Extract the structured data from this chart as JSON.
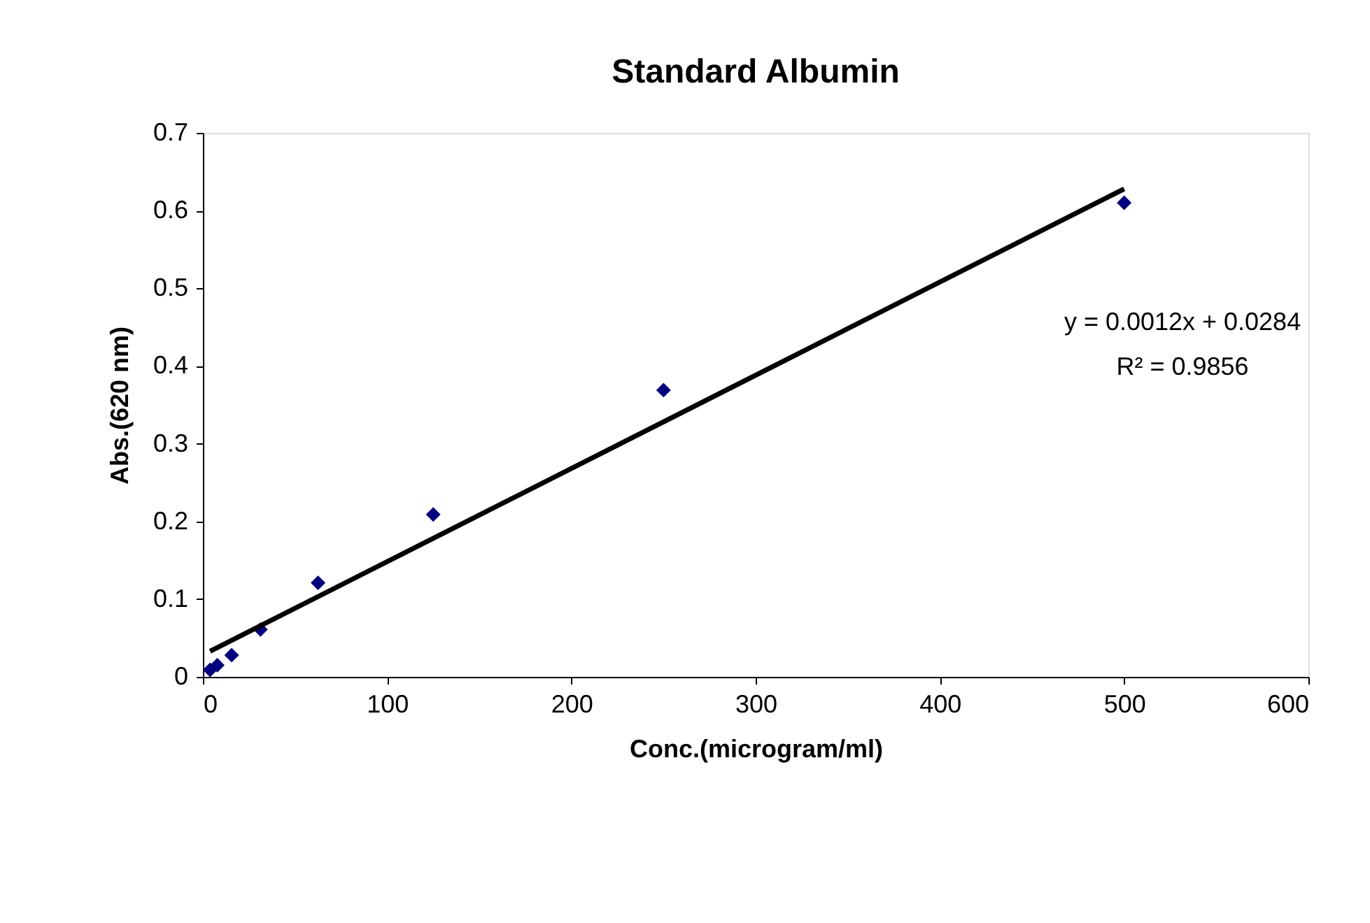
{
  "chart_data": {
    "type": "scatter",
    "title": "Standard Albumin",
    "xlabel": "Conc.(microgram/ml)",
    "ylabel": "Abs.(620 nm)",
    "x": [
      3.9,
      7.8,
      15.6,
      31.25,
      62.5,
      125,
      250,
      500
    ],
    "series": [
      {
        "color": "#000080",
        "marker": "diamond",
        "values": [
          0.009,
          0.015,
          0.028,
          0.061,
          0.121,
          0.209,
          0.369,
          0.61
        ]
      },
      {
        "type": "line",
        "color": "#000000",
        "x": [
          3.9,
          500
        ],
        "values": [
          0.033,
          0.628
        ],
        "line_style": "solid"
      }
    ],
    "annotations": [
      "y = 0.0012x + 0.0284",
      "R² = 0.9856"
    ],
    "xlim": [
      0,
      600
    ],
    "xticks": [
      0,
      100,
      200,
      300,
      400,
      500,
      600
    ],
    "ylim": [
      0,
      0.7
    ],
    "yticks": [
      0,
      0.1,
      0.2,
      0.3,
      0.4,
      0.5,
      0.6,
      0.7
    ],
    "grid": false
  }
}
